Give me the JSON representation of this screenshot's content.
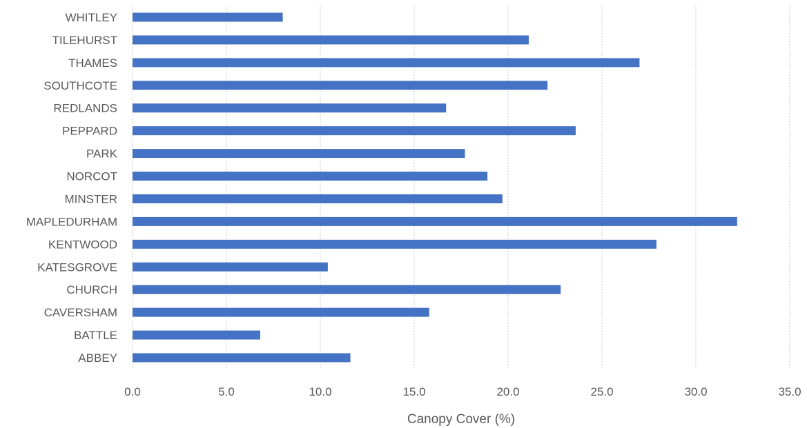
{
  "chart_data": {
    "type": "bar",
    "orientation": "horizontal",
    "categories": [
      "ABBEY",
      "BATTLE",
      "CAVERSHAM",
      "CHURCH",
      "KATESGROVE",
      "KENTWOOD",
      "MAPLEDURHAM",
      "MINSTER",
      "NORCOT",
      "PARK",
      "PEPPARD",
      "REDLANDS",
      "SOUTHCOTE",
      "THAMES",
      "TILEHURST",
      "WHITLEY"
    ],
    "values": [
      11.6,
      6.8,
      15.8,
      22.8,
      10.4,
      27.9,
      32.2,
      19.7,
      18.9,
      17.7,
      23.6,
      16.7,
      22.1,
      27.0,
      21.1,
      8.0
    ],
    "xlabel": "Canopy Cover (%)",
    "ylabel": "",
    "title": "",
    "xlim": [
      0,
      35
    ],
    "x_ticks": [
      "0.0",
      "5.0",
      "10.0",
      "15.0",
      "20.0",
      "25.0",
      "30.0",
      "35.0"
    ],
    "grid": "vertical dashed",
    "legend": "none",
    "bar_color": "#4472c4",
    "grid_color": "#c8c8c8",
    "text_color": "#595959"
  }
}
